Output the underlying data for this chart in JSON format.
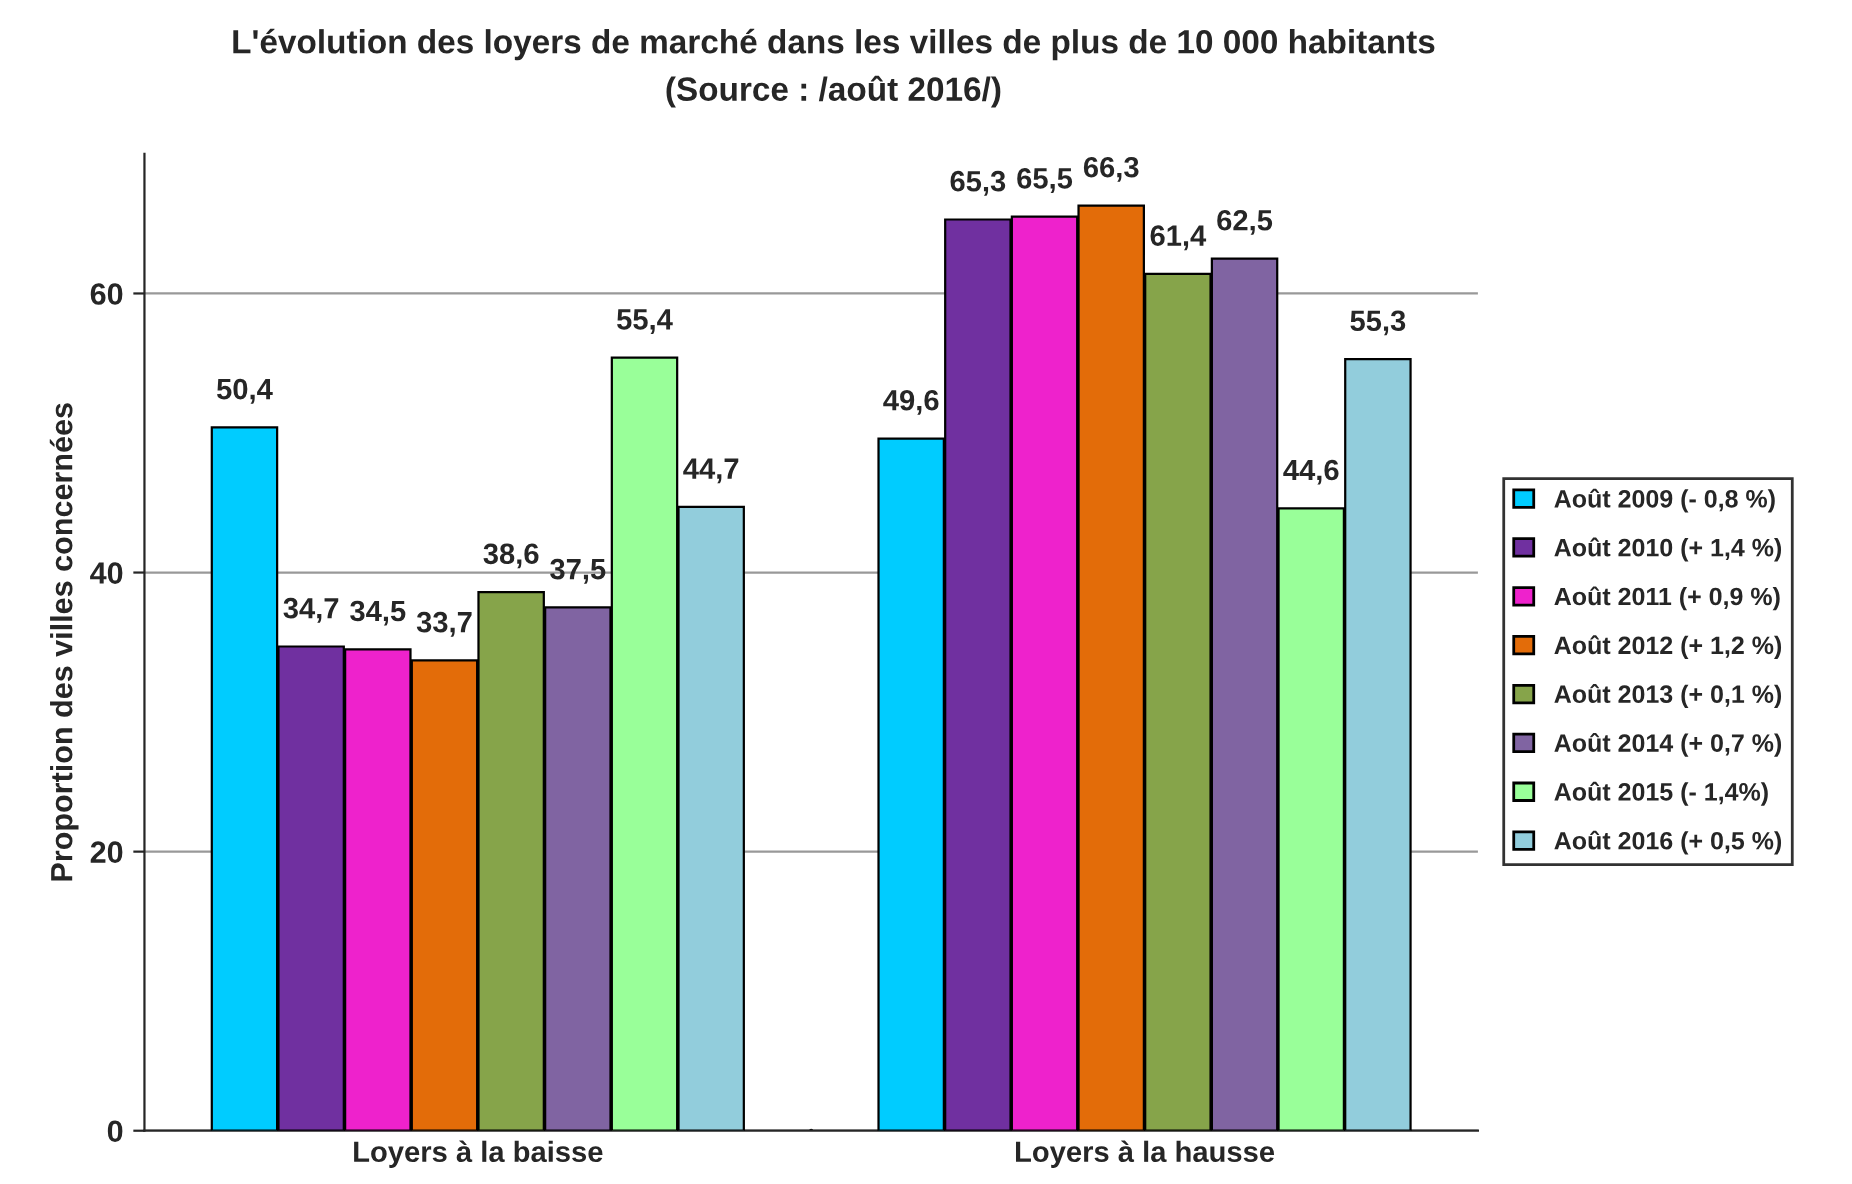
{
  "chart_data": {
    "type": "bar",
    "title": "L'évolution des loyers de marché dans les villes de plus de 10 000 habitants",
    "subtitle": "(Source : /août 2016/)",
    "ylabel": "Proportion des villes concernées",
    "categories": [
      "Loyers à la baisse",
      "Loyers à la hausse"
    ],
    "series": [
      {
        "name": "Août 2009 (- 0,8 %)",
        "color": "#00ccff",
        "values": [
          50.4,
          49.6
        ],
        "value_labels": [
          "50,4",
          "49,6"
        ]
      },
      {
        "name": "Août 2010 (+ 1,4 %)",
        "color": "#7030a0",
        "values": [
          34.7,
          65.3
        ],
        "value_labels": [
          "34,7",
          "65,3"
        ]
      },
      {
        "name": "Août 2011 (+ 0,9 %)",
        "color": "#ee22cc",
        "values": [
          34.5,
          65.5
        ],
        "value_labels": [
          "34,5",
          "65,5"
        ]
      },
      {
        "name": "Août 2012 (+ 1,2 %)",
        "color": "#e36c09",
        "values": [
          33.7,
          66.3
        ],
        "value_labels": [
          "33,7",
          "66,3"
        ]
      },
      {
        "name": "Août 2013 (+ 0,1 %)",
        "color": "#86a44a",
        "values": [
          38.6,
          61.4
        ],
        "value_labels": [
          "38,6",
          "61,4"
        ]
      },
      {
        "name": "Août 2014 (+ 0,7 %)",
        "color": "#8064a2",
        "values": [
          37.5,
          62.5
        ],
        "value_labels": [
          "37,5",
          "62,5"
        ]
      },
      {
        "name": "Août 2015 (- 1,4%)",
        "color": "#99ff99",
        "values": [
          55.4,
          44.6
        ],
        "value_labels": [
          "55,4",
          "44,6"
        ]
      },
      {
        "name": "Août 2016 (+ 0,5 %)",
        "color": "#92cddc",
        "values": [
          44.7,
          55.3
        ],
        "value_labels": [
          "44,7",
          "55,3"
        ]
      }
    ],
    "ylim": [
      0,
      70
    ],
    "yticks": [
      0,
      20,
      40,
      60
    ],
    "grid": "y",
    "legend": "right"
  }
}
